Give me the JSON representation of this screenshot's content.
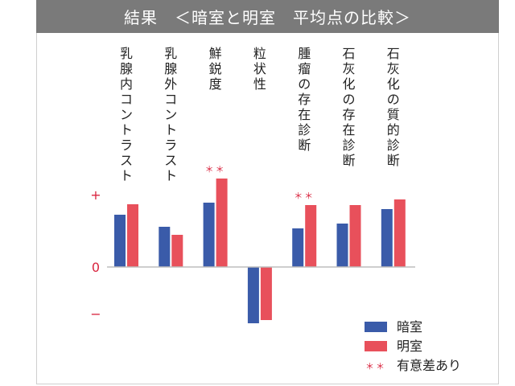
{
  "chart_data": {
    "type": "bar",
    "title": "結果　＜暗室と明室　平均点の比較＞",
    "categories": [
      "乳腺内コントラスト",
      "乳腺外コントラスト",
      "鮮鋭度",
      "粒状性",
      "腫瘤の存在診断",
      "石灰化の存在診断",
      "石灰化の質的診断"
    ],
    "series": [
      {
        "name": "暗室",
        "color": "#3a5ba9",
        "values": [
          0.65,
          0.5,
          0.8,
          -0.7,
          0.48,
          0.54,
          0.72
        ]
      },
      {
        "name": "明室",
        "color": "#e8505b",
        "values": [
          0.78,
          0.4,
          1.1,
          -0.66,
          0.77,
          0.77,
          0.84
        ]
      }
    ],
    "y_tick_labels": {
      "plus": "+",
      "zero": "0",
      "minus": "−"
    },
    "ylim": [
      -0.8,
      1.25
    ],
    "significance": [
      {
        "category_index": 2,
        "mark": "＊＊"
      },
      {
        "category_index": 4,
        "mark": "＊＊"
      }
    ],
    "legend": {
      "placement": "bottom-right",
      "significance_mark": "＊＊",
      "significance_label": "有意差あり"
    },
    "sig_color": "#d9253f"
  }
}
